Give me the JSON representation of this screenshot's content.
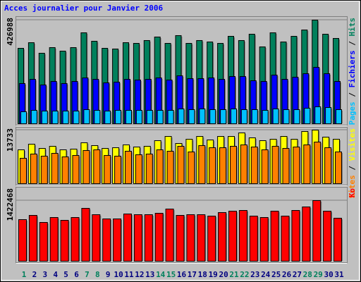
{
  "chart_data": {
    "type": "bar",
    "title": "Acces journalier pour Janvier 2006",
    "categories": [
      "1",
      "2",
      "3",
      "4",
      "5",
      "6",
      "7",
      "8",
      "9",
      "10",
      "11",
      "12",
      "13",
      "14",
      "15",
      "16",
      "17",
      "18",
      "19",
      "20",
      "21",
      "22",
      "23",
      "24",
      "25",
      "26",
      "27",
      "28",
      "29",
      "30",
      "31"
    ],
    "highlighted_categories": [
      "1",
      "7",
      "8",
      "14",
      "15",
      "21",
      "22",
      "28",
      "29"
    ],
    "highlight_color": "#00805c",
    "category_color": "#000080",
    "legend_separator": " / ",
    "panels": [
      {
        "ylim": [
          0,
          426988
        ],
        "yticks": [
          426988
        ],
        "series": [
          {
            "name": "Hits",
            "color": "#00805c",
            "values": [
              310800,
              334000,
              290500,
              313700,
              299200,
              313700,
              374700,
              339900,
              310800,
              307900,
              334000,
              331100,
              342800,
              357300,
              331100,
              363100,
              331100,
              342800,
              336900,
              331100,
              360200,
              342800,
              368900,
              316600,
              374700,
              336900,
              360200,
              386300,
              426988,
              368900,
              351500
            ]
          },
          {
            "name": "Fichiers",
            "color": "#0000ff",
            "values": [
              165600,
              183000,
              159800,
              174300,
              165600,
              174300,
              188800,
              183000,
              168500,
              171400,
              183000,
              180100,
              183000,
              188800,
              180100,
              197500,
              185900,
              185900,
              188800,
              183000,
              194600,
              194600,
              177200,
              174300,
              200400,
              183000,
              191700,
              206200,
              232400,
              206200,
              174300
            ]
          },
          {
            "name": "Pages",
            "color": "#00c0ff",
            "values": [
              49400,
              55200,
              52300,
              52300,
              52300,
              52300,
              58100,
              55200,
              52300,
              55200,
              55200,
              55200,
              55200,
              55200,
              55200,
              61000,
              58100,
              61000,
              58100,
              58100,
              61000,
              58100,
              58100,
              55200,
              61000,
              58100,
              58100,
              63900,
              69700,
              66800,
              58100
            ]
          }
        ]
      },
      {
        "ylim": [
          0,
          13733
        ],
        "yticks": [
          13733
        ],
        "series": [
          {
            "name": "Visites",
            "color": "#ffff00",
            "values": [
              8674,
              10119,
              9035,
              9577,
              8674,
              8854,
              10481,
              9758,
              9035,
              9216,
              9939,
              9396,
              9577,
              11023,
              12107,
              10300,
              11384,
              12107,
              11203,
              12107,
              12107,
              13010,
              11746,
              11023,
              11384,
              12107,
              11384,
              13372,
              13733,
              11926,
              11384
            ]
          },
          {
            "name": "Sites",
            "color": "#ff8000",
            "values": [
              6505,
              7589,
              7047,
              7770,
              6867,
              7228,
              8493,
              8674,
              7228,
              7047,
              8312,
              7409,
              7589,
              8674,
              8312,
              9577,
              8132,
              9758,
              9216,
              9216,
              9577,
              9939,
              9396,
              8674,
              9577,
              9035,
              9396,
              9939,
              10661,
              9216,
              8132
            ]
          }
        ]
      },
      {
        "ylim": [
          0,
          1422468
        ],
        "yticks": [
          1422468
        ],
        "series": [
          {
            "name": "Ko",
            "color": "#ff0000",
            "values": [
              975900,
              1075100,
              909700,
              1025500,
              959300,
              1025500,
              1240500,
              1091600,
              992400,
              992400,
              1108200,
              1091600,
              1091600,
              1124700,
              1224000,
              1075100,
              1091600,
              1091600,
              1058600,
              1141300,
              1174300,
              1190900,
              1058600,
              1025500,
              1174300,
              1058600,
              1190900,
              1273600,
              1422468,
              1174300,
              1008900
            ]
          }
        ]
      }
    ]
  }
}
